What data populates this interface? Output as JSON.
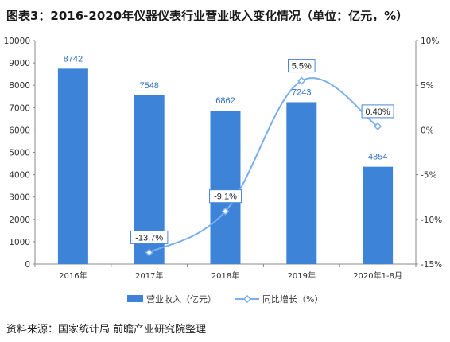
{
  "title": "图表3：2016-2020年仪器仪表行业营业收入变化情况（单位：亿元，%）",
  "source": "资料来源：国家统计局 前瞻产业研究院整理",
  "colors": {
    "bar": "#3d84d9",
    "line": "#7aaef0",
    "label_box": "#4b87d6"
  },
  "chart_data": {
    "type": "bar",
    "categories": [
      "2016年",
      "2017年",
      "2018年",
      "2019年",
      "2020年1-8月"
    ],
    "series": [
      {
        "name": "营业收入（亿元）",
        "type": "bar",
        "axis": "left",
        "values": [
          8742,
          7548,
          6862,
          7243,
          4354
        ],
        "labels": [
          "8742",
          "7548",
          "6862",
          "7243",
          "4354"
        ]
      },
      {
        "name": "同比增长（%）",
        "type": "line",
        "axis": "right",
        "values": [
          null,
          -13.7,
          -9.1,
          5.5,
          0.4
        ],
        "labels": [
          "",
          "-13.7%",
          "-9.1%",
          "5.5%",
          "0.40%"
        ]
      }
    ],
    "y_left": {
      "min": 0,
      "max": 10000,
      "ticks": [
        "0",
        "1000",
        "2000",
        "3000",
        "4000",
        "5000",
        "6000",
        "7000",
        "8000",
        "9000",
        "10000"
      ]
    },
    "y_right": {
      "min": -15,
      "max": 10,
      "ticks": [
        "-15%",
        "-10%",
        "-5%",
        "0%",
        "5%",
        "10%"
      ]
    },
    "grid": false,
    "legend_position": "bottom"
  }
}
